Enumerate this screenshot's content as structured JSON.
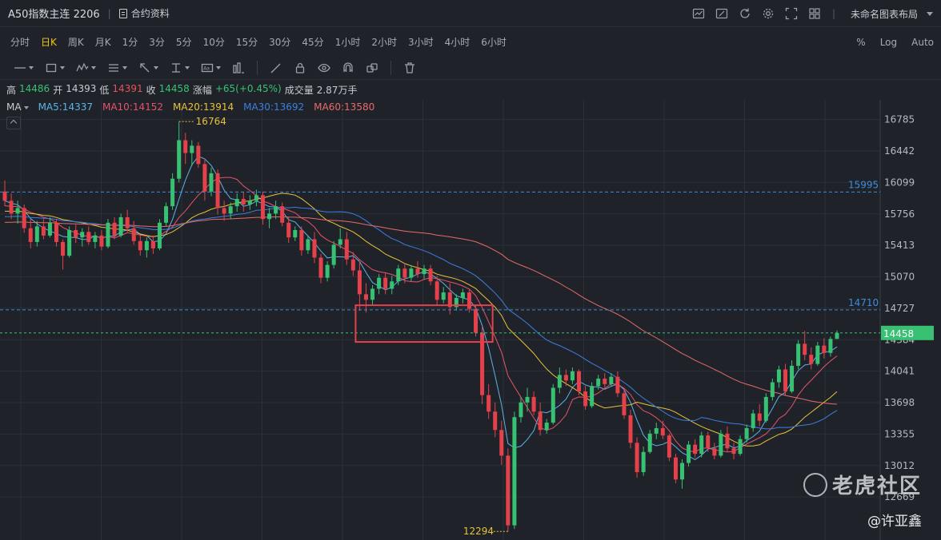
{
  "header": {
    "title": "A50指数主连 2206",
    "contract_info": "合约资料",
    "layout_name": "未命名图表布局",
    "icons": [
      "chart-icon",
      "pen-icon",
      "refresh-icon",
      "gear-icon",
      "fullscreen-icon",
      "layout-grid-icon"
    ]
  },
  "periods": {
    "items": [
      "分时",
      "日K",
      "周K",
      "月K",
      "1分",
      "3分",
      "5分",
      "10分",
      "15分",
      "30分",
      "45分",
      "1小时",
      "2小时",
      "3小时",
      "4小时",
      "6小时"
    ],
    "active": "日K",
    "right": [
      "%",
      "Log",
      "Auto"
    ]
  },
  "tools": [
    "line-tool-icon",
    "rect-tool-icon",
    "wave-tool-icon",
    "fib-tool-icon",
    "arrow-tool-icon",
    "text-cursor-icon",
    "text-tool-icon",
    "bar-tool-icon",
    "brush-icon",
    "lock-icon",
    "eye-icon",
    "magnet-icon",
    "clone-icon",
    "trash-icon"
  ],
  "ohlc": {
    "high_label": "高",
    "high": "14486",
    "open_label": "开",
    "open": "14393",
    "low_label": "低",
    "low": "14391",
    "close_label": "收",
    "close": "14458",
    "change_label": "涨幅",
    "change": "+65(+0.45%)",
    "volume_label": "成交量",
    "volume": "2.87万手"
  },
  "ma_legend": {
    "label": "MA",
    "items": [
      {
        "text": "MA5:14337",
        "color": "#5ab4e8"
      },
      {
        "text": "MA10:14152",
        "color": "#e5536b"
      },
      {
        "text": "MA20:13914",
        "color": "#e8c23a"
      },
      {
        "text": "MA30:13692",
        "color": "#3b7fe0"
      },
      {
        "text": "MA60:13580",
        "color": "#e86a6a"
      }
    ]
  },
  "watermark": "老虎社区",
  "author": "@许亚鑫",
  "chart_data": {
    "type": "candlestick",
    "y_ticks": [
      "16785",
      "16442",
      "16099",
      "15756",
      "15413",
      "15070",
      "14727",
      "14384",
      "14041",
      "13698",
      "13355",
      "13012",
      "12669"
    ],
    "ylim": [
      12200,
      17000
    ],
    "last_price": "14458",
    "h_lines": [
      {
        "value": 15995,
        "label": "15995",
        "color": "#3d8ce0"
      },
      {
        "value": 14710,
        "label": "14710",
        "color": "#3d8ce0"
      }
    ],
    "marks": [
      {
        "label": "16764",
        "value": 16764,
        "type": "high"
      },
      {
        "label": "12294",
        "value": 12294,
        "type": "low"
      }
    ],
    "annotation_box": {
      "from_index": 55,
      "to_index": 75,
      "y_top": 14760,
      "y_bottom": 14360,
      "color": "#e5414b"
    },
    "colors": {
      "up": "#38c172",
      "down": "#e5414b"
    },
    "ohlc": [
      [
        16000,
        16120,
        15840,
        15900
      ],
      [
        15900,
        15980,
        15700,
        15760
      ],
      [
        15760,
        15900,
        15650,
        15820
      ],
      [
        15820,
        15860,
        15550,
        15600
      ],
      [
        15600,
        15700,
        15380,
        15450
      ],
      [
        15450,
        15680,
        15400,
        15620
      ],
      [
        15620,
        15700,
        15480,
        15520
      ],
      [
        15520,
        15720,
        15500,
        15660
      ],
      [
        15660,
        15700,
        15400,
        15450
      ],
      [
        15450,
        15480,
        15150,
        15300
      ],
      [
        15300,
        15620,
        15280,
        15580
      ],
      [
        15580,
        15640,
        15440,
        15500
      ],
      [
        15500,
        15600,
        15400,
        15560
      ],
      [
        15560,
        15620,
        15420,
        15450
      ],
      [
        15450,
        15560,
        15380,
        15520
      ],
      [
        15520,
        15580,
        15360,
        15400
      ],
      [
        15400,
        15700,
        15380,
        15660
      ],
      [
        15660,
        15720,
        15480,
        15520
      ],
      [
        15520,
        15760,
        15500,
        15720
      ],
      [
        15720,
        15800,
        15560,
        15600
      ],
      [
        15600,
        15680,
        15420,
        15460
      ],
      [
        15460,
        15520,
        15300,
        15360
      ],
      [
        15360,
        15500,
        15280,
        15460
      ],
      [
        15460,
        15520,
        15320,
        15380
      ],
      [
        15380,
        15700,
        15360,
        15660
      ],
      [
        15660,
        15880,
        15620,
        15840
      ],
      [
        15840,
        16200,
        15800,
        16140
      ],
      [
        16140,
        16760,
        16100,
        16560
      ],
      [
        16560,
        16640,
        16300,
        16420
      ],
      [
        16420,
        16560,
        16280,
        16500
      ],
      [
        16500,
        16540,
        16260,
        16300
      ],
      [
        16300,
        16360,
        15900,
        16000
      ],
      [
        16000,
        16260,
        15950,
        16200
      ],
      [
        16200,
        16240,
        15750,
        15820
      ],
      [
        15820,
        15900,
        15680,
        15760
      ],
      [
        15760,
        15880,
        15700,
        15840
      ],
      [
        15840,
        15980,
        15780,
        15920
      ],
      [
        15920,
        16000,
        15780,
        15860
      ],
      [
        15860,
        15960,
        15800,
        15900
      ],
      [
        15900,
        16020,
        15840,
        15960
      ],
      [
        15960,
        16000,
        15640,
        15700
      ],
      [
        15700,
        15820,
        15600,
        15760
      ],
      [
        15760,
        15900,
        15700,
        15840
      ],
      [
        15840,
        15880,
        15620,
        15660
      ],
      [
        15660,
        15720,
        15440,
        15500
      ],
      [
        15500,
        15620,
        15460,
        15580
      ],
      [
        15580,
        15620,
        15300,
        15360
      ],
      [
        15360,
        15520,
        15320,
        15480
      ],
      [
        15480,
        15560,
        15220,
        15280
      ],
      [
        15280,
        15320,
        15000,
        15060
      ],
      [
        15060,
        15240,
        15020,
        15200
      ],
      [
        15200,
        15460,
        15160,
        15420
      ],
      [
        15420,
        15600,
        15380,
        15480
      ],
      [
        15480,
        15560,
        15200,
        15260
      ],
      [
        15260,
        15340,
        15080,
        15140
      ],
      [
        15140,
        15240,
        14700,
        14880
      ],
      [
        14880,
        15000,
        14680,
        14820
      ],
      [
        14820,
        14980,
        14760,
        14940
      ],
      [
        14940,
        15100,
        14880,
        15060
      ],
      [
        15060,
        15120,
        14880,
        14940
      ],
      [
        14940,
        15080,
        14880,
        15020
      ],
      [
        15020,
        15200,
        14980,
        15160
      ],
      [
        15160,
        15220,
        15000,
        15060
      ],
      [
        15060,
        15200,
        15020,
        15160
      ],
      [
        15160,
        15240,
        15060,
        15100
      ],
      [
        15100,
        15200,
        15040,
        15160
      ],
      [
        15160,
        15200,
        14980,
        15020
      ],
      [
        15020,
        15080,
        14760,
        14820
      ],
      [
        14820,
        14960,
        14780,
        14900
      ],
      [
        14900,
        15000,
        14660,
        14740
      ],
      [
        14740,
        14880,
        14700,
        14840
      ],
      [
        14840,
        14940,
        14780,
        14900
      ],
      [
        14900,
        14940,
        14680,
        14720
      ],
      [
        14720,
        14760,
        14420,
        14460
      ],
      [
        14460,
        14520,
        13680,
        13780
      ],
      [
        13780,
        13900,
        13520,
        13600
      ],
      [
        13600,
        13700,
        13320,
        13400
      ],
      [
        13400,
        13500,
        13020,
        13120
      ],
      [
        13120,
        13200,
        12294,
        12360
      ],
      [
        12360,
        13600,
        12320,
        13540
      ],
      [
        13540,
        13760,
        13480,
        13700
      ],
      [
        13700,
        13860,
        13600,
        13760
      ],
      [
        13760,
        13820,
        13560,
        13600
      ],
      [
        13600,
        13700,
        13340,
        13400
      ],
      [
        13400,
        13520,
        13360,
        13480
      ],
      [
        13480,
        13900,
        13460,
        13860
      ],
      [
        13860,
        14080,
        13800,
        14000
      ],
      [
        14000,
        14060,
        13880,
        13940
      ],
      [
        13940,
        14080,
        13900,
        14040
      ],
      [
        14040,
        14060,
        13780,
        13820
      ],
      [
        13820,
        13880,
        13620,
        13660
      ],
      [
        13660,
        13920,
        13640,
        13880
      ],
      [
        13880,
        14000,
        13840,
        13960
      ],
      [
        13960,
        14020,
        13860,
        13900
      ],
      [
        13900,
        14020,
        13880,
        13980
      ],
      [
        13980,
        14040,
        13760,
        13800
      ],
      [
        13800,
        13860,
        13520,
        13560
      ],
      [
        13560,
        13620,
        13200,
        13260
      ],
      [
        13260,
        13320,
        12880,
        12940
      ],
      [
        12940,
        13220,
        12900,
        13160
      ],
      [
        13160,
        13400,
        13140,
        13360
      ],
      [
        13360,
        13480,
        13300,
        13420
      ],
      [
        13420,
        13500,
        13300,
        13340
      ],
      [
        13340,
        13360,
        13060,
        13100
      ],
      [
        13100,
        13140,
        12820,
        12860
      ],
      [
        12860,
        13080,
        12760,
        13040
      ],
      [
        13040,
        13280,
        13000,
        13240
      ],
      [
        13240,
        13300,
        13100,
        13140
      ],
      [
        13140,
        13380,
        13100,
        13340
      ],
      [
        13340,
        13380,
        13160,
        13200
      ],
      [
        13200,
        13260,
        13080,
        13120
      ],
      [
        13120,
        13400,
        13100,
        13360
      ],
      [
        13360,
        13440,
        13160,
        13200
      ],
      [
        13200,
        13260,
        13080,
        13140
      ],
      [
        13140,
        13340,
        13120,
        13300
      ],
      [
        13300,
        13460,
        13260,
        13420
      ],
      [
        13420,
        13620,
        13380,
        13580
      ],
      [
        13580,
        13680,
        13440,
        13500
      ],
      [
        13500,
        13800,
        13480,
        13760
      ],
      [
        13760,
        13960,
        13720,
        13920
      ],
      [
        13920,
        14100,
        13860,
        14060
      ],
      [
        14060,
        14120,
        13780,
        13820
      ],
      [
        13820,
        14160,
        13800,
        14100
      ],
      [
        14100,
        14380,
        14060,
        14340
      ],
      [
        14340,
        14480,
        14160,
        14220
      ],
      [
        14220,
        14300,
        14060,
        14120
      ],
      [
        14120,
        14360,
        14100,
        14320
      ],
      [
        14320,
        14400,
        14180,
        14240
      ],
      [
        14240,
        14420,
        14200,
        14393
      ],
      [
        14393,
        14486,
        14391,
        14458
      ]
    ],
    "ma": [
      {
        "name": "MA5",
        "color": "#5ab4e8"
      },
      {
        "name": "MA10",
        "color": "#e5536b"
      },
      {
        "name": "MA20",
        "color": "#e8c23a"
      },
      {
        "name": "MA30",
        "color": "#3b7fe0"
      },
      {
        "name": "MA60",
        "color": "#e86a6a"
      }
    ]
  }
}
